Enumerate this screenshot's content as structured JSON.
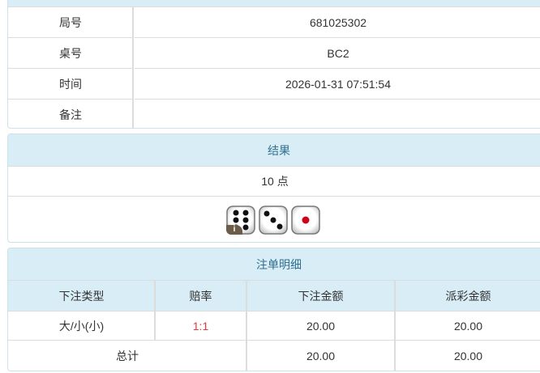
{
  "info": {
    "rows": [
      {
        "label": "局号",
        "value": "681025302"
      },
      {
        "label": "桌号",
        "value": "BC2"
      },
      {
        "label": "时间",
        "value": "2026-01-31 07:51:54"
      },
      {
        "label": "备注",
        "value": ""
      }
    ]
  },
  "result": {
    "title": "结果",
    "points": "10 点",
    "dice": [
      6,
      3,
      1
    ],
    "info_badge": "i"
  },
  "bets": {
    "title": "注单明细",
    "columns": [
      "下注类型",
      "赔率",
      "下注金额",
      "派彩金额"
    ],
    "rows": [
      {
        "type": "大/小(小)",
        "odds": "1:1",
        "bet": "20.00",
        "payout": "20.00"
      }
    ],
    "total": {
      "label": "总计",
      "bet": "20.00",
      "payout": "20.00"
    }
  }
}
